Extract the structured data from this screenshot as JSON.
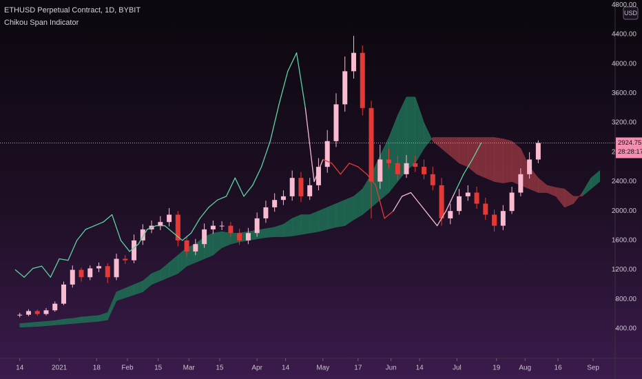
{
  "header": {
    "symbol": "ETHUSD Perpetual Contract, 1D, BYBIT",
    "indicator": "Chikou Span Indicator",
    "currency": "USD"
  },
  "chart_data": {
    "type": "candlestick",
    "xlim": [
      -9,
      271
    ],
    "ylim": [
      0,
      4800
    ],
    "xticks": [
      {
        "value": 0,
        "label": "14"
      },
      {
        "value": 18,
        "label": "2021"
      },
      {
        "value": 35,
        "label": "18"
      },
      {
        "value": 49,
        "label": "Feb"
      },
      {
        "value": 63,
        "label": "15"
      },
      {
        "value": 77,
        "label": "Mar"
      },
      {
        "value": 91,
        "label": "15"
      },
      {
        "value": 108,
        "label": "Apr"
      },
      {
        "value": 121,
        "label": "14"
      },
      {
        "value": 138,
        "label": "May"
      },
      {
        "value": 154,
        "label": "17"
      },
      {
        "value": 169,
        "label": "Jun"
      },
      {
        "value": 182,
        "label": "14"
      },
      {
        "value": 199,
        "label": "Jul"
      },
      {
        "value": 217,
        "label": "19"
      },
      {
        "value": 230,
        "label": "Aug"
      },
      {
        "value": 245,
        "label": "16"
      },
      {
        "value": 261,
        "label": "Sep"
      }
    ],
    "yticks": [
      {
        "value": 400,
        "label": "400.00"
      },
      {
        "value": 800,
        "label": "800.00"
      },
      {
        "value": 1200,
        "label": "1200.00"
      },
      {
        "value": 1600,
        "label": "1600.00"
      },
      {
        "value": 2000,
        "label": "2000.00"
      },
      {
        "value": 2400,
        "label": "2400.00"
      },
      {
        "value": 2800,
        "label": "2800.00"
      },
      {
        "value": 3200,
        "label": "3200.00"
      },
      {
        "value": 3600,
        "label": "3600.00"
      },
      {
        "value": 4000,
        "label": "4000.00"
      },
      {
        "value": 4400,
        "label": "4400.00"
      },
      {
        "value": 4800,
        "label": "4800.00"
      }
    ],
    "up_color": "#f8bbd0",
    "down_color": "#e53935",
    "candles": {
      "x": [
        0,
        4,
        8,
        12,
        16,
        20,
        24,
        28,
        32,
        36,
        40,
        44,
        48,
        52,
        56,
        60,
        64,
        68,
        72,
        76,
        80,
        84,
        88,
        92,
        96,
        100,
        104,
        108,
        112,
        116,
        120,
        124,
        128,
        132,
        136,
        140,
        144,
        148,
        152,
        156,
        160,
        164,
        168,
        172,
        176,
        180,
        184,
        188,
        192,
        196,
        200,
        204,
        208,
        212,
        216,
        220,
        224,
        228,
        232,
        236
      ],
      "open": [
        580,
        590,
        640,
        600,
        650,
        740,
        1000,
        1200,
        1100,
        1220,
        1250,
        1100,
        1350,
        1330,
        1600,
        1750,
        1800,
        1850,
        1950,
        1600,
        1450,
        1550,
        1750,
        1800,
        1800,
        1700,
        1600,
        1700,
        1900,
        2050,
        2150,
        2200,
        2450,
        2200,
        2350,
        2600,
        2950,
        3450,
        3900,
        4150,
        3400,
        2400,
        2700,
        2650,
        2500,
        2650,
        2600,
        2500,
        2350,
        1900,
        2000,
        2200,
        2250,
        2100,
        1950,
        1800,
        2000,
        2250,
        2500,
        2700
      ],
      "high": [
        615,
        665,
        660,
        680,
        770,
        1040,
        1260,
        1230,
        1260,
        1300,
        1290,
        1420,
        1400,
        1680,
        1820,
        1870,
        1930,
        2040,
        2000,
        1660,
        1620,
        1830,
        1870,
        1860,
        1850,
        1760,
        1770,
        1980,
        2140,
        2240,
        2280,
        2550,
        2530,
        2450,
        2720,
        3100,
        3600,
        4100,
        4380,
        4250,
        3500,
        2900,
        2850,
        2750,
        2760,
        2750,
        2700,
        2600,
        2450,
        2100,
        2300,
        2350,
        2330,
        2180,
        2020,
        2080,
        2330,
        2580,
        2800,
        2960
      ],
      "low": [
        555,
        570,
        575,
        580,
        630,
        720,
        960,
        1040,
        1060,
        1170,
        1020,
        1060,
        1280,
        1290,
        1540,
        1700,
        1740,
        1790,
        1520,
        1380,
        1400,
        1500,
        1690,
        1740,
        1650,
        1540,
        1550,
        1650,
        1840,
        1990,
        2080,
        2140,
        2120,
        2150,
        2280,
        2520,
        2870,
        3350,
        3800,
        3300,
        1900,
        2300,
        2580,
        2420,
        2450,
        2530,
        2430,
        2280,
        1800,
        1820,
        1950,
        2140,
        2030,
        1880,
        1720,
        1740,
        1960,
        2200,
        2440,
        2650
      ],
      "close": [
        590,
        640,
        600,
        650,
        740,
        1000,
        1200,
        1100,
        1220,
        1250,
        1100,
        1350,
        1330,
        1600,
        1750,
        1800,
        1850,
        1950,
        1600,
        1450,
        1550,
        1750,
        1800,
        1800,
        1700,
        1600,
        1700,
        1900,
        2050,
        2150,
        2200,
        2450,
        2200,
        2350,
        2600,
        2950,
        3450,
        3900,
        4150,
        3400,
        2400,
        2700,
        2650,
        2500,
        2650,
        2600,
        2500,
        2350,
        1900,
        2000,
        2200,
        2250,
        2100,
        1950,
        1800,
        2000,
        2250,
        2500,
        2700,
        2925
      ]
    },
    "chikou": {
      "x": [
        -2,
        2,
        6,
        10,
        14,
        18,
        22,
        26,
        30,
        34,
        38,
        42,
        46,
        50,
        54,
        58,
        62,
        66,
        70,
        74,
        78,
        82,
        86,
        90,
        94,
        98,
        102,
        106,
        110,
        114,
        118,
        122,
        126,
        130,
        134,
        138,
        142,
        146,
        150,
        154,
        158,
        162,
        166,
        170,
        174,
        178,
        182,
        186,
        190,
        194,
        198,
        202,
        206,
        210
      ],
      "values": [
        1200,
        1100,
        1220,
        1250,
        1100,
        1350,
        1330,
        1600,
        1750,
        1800,
        1850,
        1950,
        1600,
        1450,
        1550,
        1750,
        1800,
        1800,
        1700,
        1600,
        1700,
        1900,
        2050,
        2150,
        2200,
        2450,
        2200,
        2350,
        2600,
        2950,
        3450,
        3900,
        4150,
        3400,
        2400,
        2700,
        2650,
        2500,
        2650,
        2600,
        2500,
        2350,
        1900,
        2000,
        2200,
        2250,
        2100,
        1950,
        1800,
        2000,
        2250,
        2500,
        2700,
        2925
      ],
      "colors": [
        "#5cd6a2",
        "#5cd6a2",
        "#5cd6a2",
        "#5cd6a2",
        "#5cd6a2",
        "#5cd6a2",
        "#5cd6a2",
        "#5cd6a2",
        "#5cd6a2",
        "#5cd6a2",
        "#5cd6a2",
        "#5cd6a2",
        "#5cd6a2",
        "#5cd6a2",
        "#5cd6a2",
        "#5cd6a2",
        "#5cd6a2",
        "#5cd6a2",
        "#5cd6a2",
        "#5cd6a2",
        "#5cd6a2",
        "#5cd6a2",
        "#5cd6a2",
        "#5cd6a2",
        "#5cd6a2",
        "#5cd6a2",
        "#5cd6a2",
        "#5cd6a2",
        "#5cd6a2",
        "#5cd6a2",
        "#5cd6a2",
        "#5cd6a2",
        "#5cd6a2",
        "#f8bbd0",
        "#f8bbd0",
        "#e53935",
        "#e53935",
        "#e53935",
        "#e53935",
        "#e53935",
        "#e53935",
        "#e53935",
        "#e53935",
        "#f8bbd0",
        "#f8bbd0",
        "#f8bbd0",
        "#f8bbd0",
        "#f8bbd0",
        "#f8bbd0",
        "#f8bbd0",
        "#5cd6a2",
        "#5cd6a2",
        "#5cd6a2",
        "#5cd6a2"
      ]
    },
    "cloud": {
      "bull_color": "#1f6e55",
      "bear_color": "#8e3440",
      "x": [
        0,
        4,
        8,
        12,
        16,
        20,
        24,
        28,
        32,
        36,
        40,
        44,
        48,
        52,
        56,
        60,
        64,
        68,
        72,
        76,
        80,
        84,
        88,
        92,
        96,
        100,
        104,
        108,
        112,
        116,
        120,
        124,
        128,
        132,
        136,
        140,
        144,
        148,
        152,
        156,
        160,
        164,
        168,
        172,
        176,
        180,
        184,
        188,
        192,
        196,
        200,
        204,
        208,
        212,
        216,
        220,
        224,
        228,
        232,
        236,
        240,
        244,
        248,
        252,
        256,
        260,
        264
      ],
      "span_a": [
        470,
        480,
        490,
        500,
        510,
        530,
        540,
        560,
        570,
        580,
        620,
        900,
        950,
        1000,
        1050,
        1150,
        1200,
        1300,
        1400,
        1500,
        1550,
        1650,
        1700,
        1720,
        1700,
        1700,
        1720,
        1740,
        1760,
        1780,
        1820,
        1900,
        1950,
        1950,
        2000,
        2050,
        2100,
        2150,
        2200,
        2300,
        2500,
        2750,
        3000,
        3300,
        3550,
        3550,
        3200,
        2950,
        2850,
        2750,
        2650,
        2600,
        2500,
        2450,
        2400,
        2380,
        2400,
        2350,
        2300,
        2250,
        2250,
        2200,
        2050,
        2100,
        2250,
        2450,
        2550
      ],
      "span_b": [
        420,
        425,
        430,
        440,
        450,
        460,
        470,
        480,
        490,
        500,
        520,
        780,
        820,
        860,
        900,
        1000,
        1050,
        1100,
        1150,
        1250,
        1300,
        1350,
        1400,
        1500,
        1550,
        1580,
        1600,
        1620,
        1640,
        1650,
        1650,
        1660,
        1680,
        1700,
        1720,
        1750,
        1780,
        1800,
        1880,
        1950,
        2050,
        2150,
        2250,
        2400,
        2550,
        2650,
        2850,
        3000,
        3000,
        3000,
        3000,
        3000,
        3000,
        3000,
        3000,
        2980,
        2950,
        2850,
        2600,
        2450,
        2350,
        2320,
        2300,
        2200,
        2200,
        2300,
        2400
      ]
    },
    "last_price": {
      "value": 2924.75,
      "countdown": "28:28:17",
      "color": "#f48fb1"
    }
  }
}
